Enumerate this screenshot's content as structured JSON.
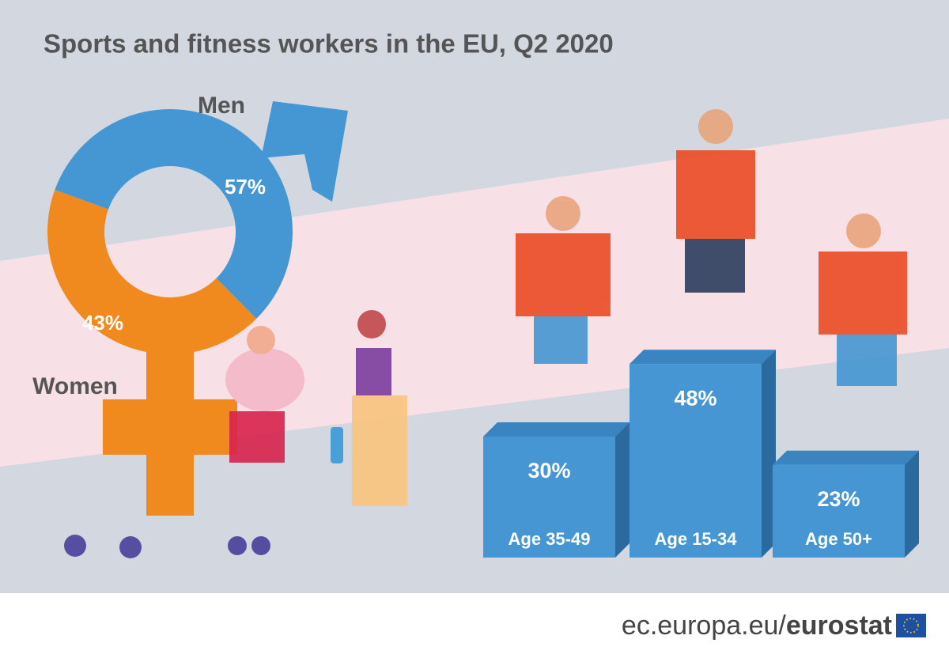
{
  "title": "Sports and fitness workers in the EU, Q2 2020",
  "chart_data": [
    {
      "type": "pie",
      "categories": [
        "Men",
        "Women"
      ],
      "values": [
        57,
        43
      ],
      "value_labels": [
        "57%",
        "43%"
      ],
      "colors": [
        "#4597d3",
        "#f08a1e"
      ]
    },
    {
      "type": "bar",
      "categories": [
        "Age 35-49",
        "Age 15-34",
        "Age 50+"
      ],
      "values": [
        30,
        48,
        23
      ],
      "value_labels": [
        "30%",
        "48%",
        "23%"
      ],
      "color": "#4596d3"
    }
  ],
  "footer": {
    "site": "ec.europa.eu/",
    "brand": "eurostat"
  }
}
